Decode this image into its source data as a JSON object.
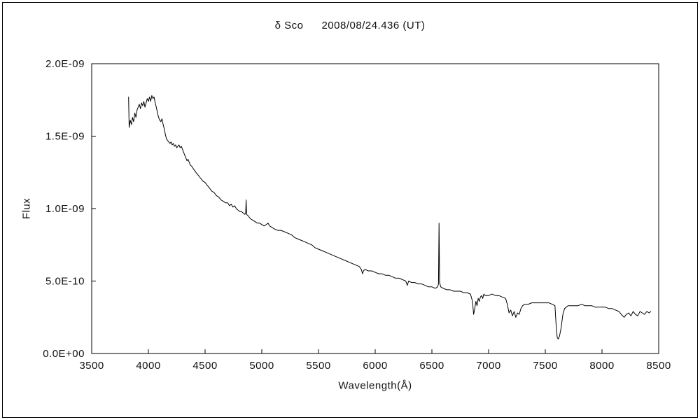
{
  "page": {
    "title_star": "δ Sco",
    "title_date": "2008/08/24.436 (UT)"
  },
  "chart_data": {
    "type": "line",
    "title": "δ Sco 2008/08/24.436 (UT)",
    "xlabel": "Wavelength(Å)",
    "ylabel": "Flux",
    "legend": "none",
    "grid": false,
    "line_color": "#000000",
    "background_color": "#ffffff",
    "xlim": [
      3500,
      8500
    ],
    "y_unit": 1e-09,
    "ylim": [
      0,
      2.0
    ],
    "x_ticks": {
      "values": [
        3500,
        4000,
        4500,
        5000,
        5500,
        6000,
        6500,
        7000,
        7500,
        8000,
        8500
      ]
    },
    "y_ticks": {
      "values": [
        0,
        0.5,
        1.0,
        1.5,
        2.0
      ],
      "labels": [
        "0.0E+00",
        "5.0E-10",
        "1.0E-09",
        "1.5E-09",
        "2.0E-09"
      ]
    },
    "points": [
      [
        3825,
        1.77
      ],
      [
        3830,
        1.56
      ],
      [
        3840,
        1.61
      ],
      [
        3850,
        1.58
      ],
      [
        3860,
        1.63
      ],
      [
        3870,
        1.6
      ],
      [
        3880,
        1.66
      ],
      [
        3890,
        1.63
      ],
      [
        3900,
        1.68
      ],
      [
        3910,
        1.7
      ],
      [
        3920,
        1.72
      ],
      [
        3930,
        1.69
      ],
      [
        3940,
        1.73
      ],
      [
        3950,
        1.71
      ],
      [
        3960,
        1.74
      ],
      [
        3970,
        1.7
      ],
      [
        3980,
        1.73
      ],
      [
        3990,
        1.76
      ],
      [
        4000,
        1.74
      ],
      [
        4010,
        1.77
      ],
      [
        4020,
        1.74
      ],
      [
        4030,
        1.78
      ],
      [
        4040,
        1.76
      ],
      [
        4050,
        1.77
      ],
      [
        4060,
        1.73
      ],
      [
        4070,
        1.7
      ],
      [
        4080,
        1.66
      ],
      [
        4090,
        1.63
      ],
      [
        4100,
        1.61
      ],
      [
        4110,
        1.6
      ],
      [
        4120,
        1.62
      ],
      [
        4130,
        1.58
      ],
      [
        4140,
        1.55
      ],
      [
        4150,
        1.51
      ],
      [
        4160,
        1.48
      ],
      [
        4170,
        1.47
      ],
      [
        4180,
        1.46
      ],
      [
        4190,
        1.45
      ],
      [
        4200,
        1.46
      ],
      [
        4210,
        1.44
      ],
      [
        4220,
        1.45
      ],
      [
        4230,
        1.43
      ],
      [
        4240,
        1.44
      ],
      [
        4250,
        1.42
      ],
      [
        4260,
        1.43
      ],
      [
        4270,
        1.44
      ],
      [
        4280,
        1.42
      ],
      [
        4290,
        1.43
      ],
      [
        4300,
        1.41
      ],
      [
        4310,
        1.39
      ],
      [
        4320,
        1.37
      ],
      [
        4330,
        1.35
      ],
      [
        4340,
        1.33
      ],
      [
        4350,
        1.34
      ],
      [
        4360,
        1.32
      ],
      [
        4370,
        1.3
      ],
      [
        4385,
        1.29
      ],
      [
        4400,
        1.27
      ],
      [
        4420,
        1.25
      ],
      [
        4440,
        1.23
      ],
      [
        4460,
        1.21
      ],
      [
        4480,
        1.19
      ],
      [
        4500,
        1.18
      ],
      [
        4520,
        1.16
      ],
      [
        4540,
        1.14
      ],
      [
        4560,
        1.12
      ],
      [
        4580,
        1.11
      ],
      [
        4600,
        1.09
      ],
      [
        4620,
        1.08
      ],
      [
        4640,
        1.06
      ],
      [
        4660,
        1.05
      ],
      [
        4680,
        1.04
      ],
      [
        4700,
        1.04
      ],
      [
        4715,
        1.02
      ],
      [
        4730,
        1.03
      ],
      [
        4745,
        1.01
      ],
      [
        4760,
        1.02
      ],
      [
        4775,
        1.0
      ],
      [
        4790,
        0.99
      ],
      [
        4805,
        0.98
      ],
      [
        4820,
        0.98
      ],
      [
        4835,
        0.97
      ],
      [
        4850,
        0.96
      ],
      [
        4858,
        0.97
      ],
      [
        4862,
        1.06
      ],
      [
        4866,
        0.96
      ],
      [
        4880,
        0.95
      ],
      [
        4900,
        0.93
      ],
      [
        4920,
        0.92
      ],
      [
        4940,
        0.91
      ],
      [
        4960,
        0.9
      ],
      [
        4980,
        0.9
      ],
      [
        5000,
        0.89
      ],
      [
        5020,
        0.88
      ],
      [
        5040,
        0.89
      ],
      [
        5055,
        0.9
      ],
      [
        5070,
        0.88
      ],
      [
        5090,
        0.87
      ],
      [
        5110,
        0.86
      ],
      [
        5140,
        0.85
      ],
      [
        5170,
        0.85
      ],
      [
        5200,
        0.84
      ],
      [
        5230,
        0.83
      ],
      [
        5260,
        0.82
      ],
      [
        5290,
        0.8
      ],
      [
        5320,
        0.79
      ],
      [
        5350,
        0.78
      ],
      [
        5380,
        0.77
      ],
      [
        5410,
        0.76
      ],
      [
        5440,
        0.75
      ],
      [
        5470,
        0.73
      ],
      [
        5500,
        0.72
      ],
      [
        5530,
        0.71
      ],
      [
        5560,
        0.7
      ],
      [
        5590,
        0.69
      ],
      [
        5620,
        0.68
      ],
      [
        5650,
        0.67
      ],
      [
        5680,
        0.66
      ],
      [
        5710,
        0.65
      ],
      [
        5740,
        0.64
      ],
      [
        5770,
        0.63
      ],
      [
        5800,
        0.62
      ],
      [
        5830,
        0.61
      ],
      [
        5860,
        0.6
      ],
      [
        5878,
        0.58
      ],
      [
        5888,
        0.55
      ],
      [
        5896,
        0.57
      ],
      [
        5910,
        0.58
      ],
      [
        5940,
        0.57
      ],
      [
        5970,
        0.57
      ],
      [
        6000,
        0.56
      ],
      [
        6030,
        0.55
      ],
      [
        6060,
        0.55
      ],
      [
        6090,
        0.54
      ],
      [
        6120,
        0.54
      ],
      [
        6150,
        0.53
      ],
      [
        6180,
        0.52
      ],
      [
        6210,
        0.52
      ],
      [
        6240,
        0.51
      ],
      [
        6270,
        0.5
      ],
      [
        6283,
        0.47
      ],
      [
        6295,
        0.5
      ],
      [
        6320,
        0.49
      ],
      [
        6350,
        0.49
      ],
      [
        6380,
        0.48
      ],
      [
        6410,
        0.48
      ],
      [
        6440,
        0.47
      ],
      [
        6470,
        0.46
      ],
      [
        6500,
        0.46
      ],
      [
        6530,
        0.45
      ],
      [
        6550,
        0.46
      ],
      [
        6558,
        0.48
      ],
      [
        6563,
        0.9
      ],
      [
        6568,
        0.49
      ],
      [
        6578,
        0.46
      ],
      [
        6600,
        0.45
      ],
      [
        6630,
        0.44
      ],
      [
        6660,
        0.44
      ],
      [
        6690,
        0.43
      ],
      [
        6720,
        0.43
      ],
      [
        6750,
        0.43
      ],
      [
        6780,
        0.42
      ],
      [
        6810,
        0.42
      ],
      [
        6840,
        0.41
      ],
      [
        6858,
        0.36
      ],
      [
        6868,
        0.27
      ],
      [
        6878,
        0.31
      ],
      [
        6888,
        0.36
      ],
      [
        6898,
        0.33
      ],
      [
        6908,
        0.38
      ],
      [
        6918,
        0.36
      ],
      [
        6928,
        0.39
      ],
      [
        6938,
        0.4
      ],
      [
        6948,
        0.38
      ],
      [
        6958,
        0.41
      ],
      [
        6970,
        0.4
      ],
      [
        7000,
        0.4
      ],
      [
        7030,
        0.41
      ],
      [
        7060,
        0.4
      ],
      [
        7090,
        0.4
      ],
      [
        7120,
        0.39
      ],
      [
        7150,
        0.38
      ],
      [
        7165,
        0.34
      ],
      [
        7180,
        0.28
      ],
      [
        7195,
        0.3
      ],
      [
        7210,
        0.26
      ],
      [
        7225,
        0.29
      ],
      [
        7240,
        0.25
      ],
      [
        7255,
        0.28
      ],
      [
        7270,
        0.27
      ],
      [
        7285,
        0.31
      ],
      [
        7300,
        0.33
      ],
      [
        7320,
        0.34
      ],
      [
        7350,
        0.34
      ],
      [
        7380,
        0.35
      ],
      [
        7410,
        0.35
      ],
      [
        7440,
        0.35
      ],
      [
        7470,
        0.35
      ],
      [
        7500,
        0.35
      ],
      [
        7530,
        0.35
      ],
      [
        7560,
        0.34
      ],
      [
        7585,
        0.33
      ],
      [
        7595,
        0.2
      ],
      [
        7605,
        0.11
      ],
      [
        7615,
        0.1
      ],
      [
        7625,
        0.12
      ],
      [
        7640,
        0.18
      ],
      [
        7655,
        0.27
      ],
      [
        7670,
        0.31
      ],
      [
        7685,
        0.32
      ],
      [
        7700,
        0.33
      ],
      [
        7730,
        0.33
      ],
      [
        7760,
        0.33
      ],
      [
        7790,
        0.33
      ],
      [
        7820,
        0.34
      ],
      [
        7850,
        0.33
      ],
      [
        7880,
        0.33
      ],
      [
        7910,
        0.33
      ],
      [
        7940,
        0.32
      ],
      [
        7970,
        0.32
      ],
      [
        8000,
        0.32
      ],
      [
        8030,
        0.32
      ],
      [
        8060,
        0.31
      ],
      [
        8090,
        0.31
      ],
      [
        8120,
        0.3
      ],
      [
        8150,
        0.29
      ],
      [
        8170,
        0.27
      ],
      [
        8195,
        0.25
      ],
      [
        8215,
        0.27
      ],
      [
        8235,
        0.28
      ],
      [
        8255,
        0.26
      ],
      [
        8275,
        0.29
      ],
      [
        8295,
        0.27
      ],
      [
        8315,
        0.26
      ],
      [
        8335,
        0.29
      ],
      [
        8355,
        0.28
      ],
      [
        8375,
        0.27
      ],
      [
        8395,
        0.29
      ],
      [
        8415,
        0.28
      ],
      [
        8430,
        0.29
      ]
    ]
  }
}
